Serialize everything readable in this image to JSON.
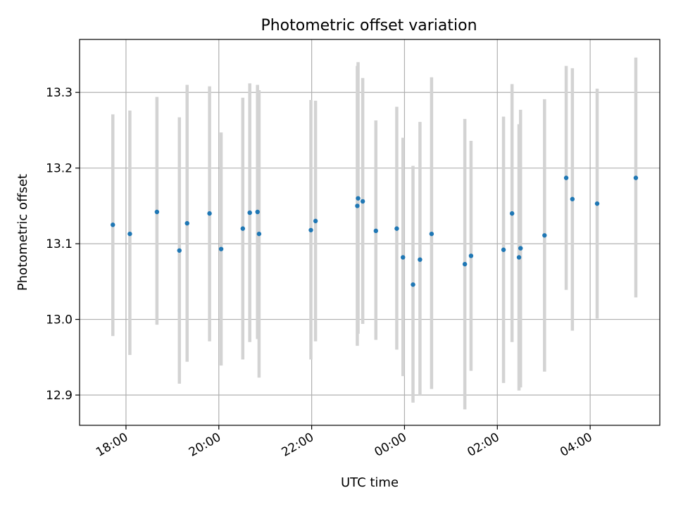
{
  "chart_data": {
    "type": "scatter",
    "title": "Photometric offset variation",
    "xlabel": "UTC time",
    "ylabel": "Photometric offset",
    "x_unit": "time of day (UTC)",
    "xlim": [
      "17:00",
      "05:30 next day"
    ],
    "ylim": [
      12.86,
      13.37
    ],
    "grid": true,
    "legend": "none",
    "x_ticks": [
      "18:00",
      "20:00",
      "22:00",
      "00:00",
      "02:00",
      "04:00"
    ],
    "y_ticks": [
      "12.9",
      "13.0",
      "13.1",
      "13.2",
      "13.3"
    ],
    "colors": {
      "points": "#1f77b4",
      "errorbars": "#d3d3d3",
      "grid": "#b0b0b0"
    },
    "series": [
      {
        "points": [
          {
            "x": "17:43",
            "y": 13.125,
            "ylo": 12.978,
            "yhi": 13.271
          },
          {
            "x": "18:05",
            "y": 13.113,
            "ylo": 12.953,
            "yhi": 13.276
          },
          {
            "x": "18:40",
            "y": 13.142,
            "ylo": 12.993,
            "yhi": 13.294
          },
          {
            "x": "19:09",
            "y": 13.091,
            "ylo": 12.915,
            "yhi": 13.267
          },
          {
            "x": "19:19",
            "y": 13.127,
            "ylo": 12.944,
            "yhi": 13.31
          },
          {
            "x": "19:48",
            "y": 13.14,
            "ylo": 12.971,
            "yhi": 13.308
          },
          {
            "x": "20:03",
            "y": 13.093,
            "ylo": 12.939,
            "yhi": 13.247
          },
          {
            "x": "20:31",
            "y": 13.12,
            "ylo": 12.947,
            "yhi": 13.293
          },
          {
            "x": "20:40",
            "y": 13.141,
            "ylo": 12.97,
            "yhi": 13.312
          },
          {
            "x": "20:50",
            "y": 13.142,
            "ylo": 12.974,
            "yhi": 13.31
          },
          {
            "x": "20:52",
            "y": 13.113,
            "ylo": 12.923,
            "yhi": 13.303
          },
          {
            "x": "21:59",
            "y": 13.118,
            "ylo": 12.947,
            "yhi": 13.29
          },
          {
            "x": "22:05",
            "y": 13.13,
            "ylo": 12.971,
            "yhi": 13.289
          },
          {
            "x": "22:59",
            "y": 13.15,
            "ylo": 12.965,
            "yhi": 13.335
          },
          {
            "x": "23:00",
            "y": 13.16,
            "ylo": 12.981,
            "yhi": 13.34
          },
          {
            "x": "23:06",
            "y": 13.156,
            "ylo": 12.994,
            "yhi": 13.319
          },
          {
            "x": "23:23",
            "y": 13.117,
            "ylo": 12.973,
            "yhi": 13.263
          },
          {
            "x": "23:50",
            "y": 13.12,
            "ylo": 12.96,
            "yhi": 13.281
          },
          {
            "x": "23:58",
            "y": 13.082,
            "ylo": 12.925,
            "yhi": 13.24
          },
          {
            "x": "00:11",
            "y": 13.046,
            "ylo": 12.89,
            "yhi": 13.203
          },
          {
            "x": "00:20",
            "y": 13.079,
            "ylo": 12.899,
            "yhi": 13.261
          },
          {
            "x": "00:35",
            "y": 13.113,
            "ylo": 12.908,
            "yhi": 13.32
          },
          {
            "x": "01:18",
            "y": 13.073,
            "ylo": 12.881,
            "yhi": 13.265
          },
          {
            "x": "01:26",
            "y": 13.084,
            "ylo": 12.932,
            "yhi": 13.236
          },
          {
            "x": "02:08",
            "y": 13.092,
            "ylo": 12.916,
            "yhi": 13.268
          },
          {
            "x": "02:19",
            "y": 13.14,
            "ylo": 12.97,
            "yhi": 13.311
          },
          {
            "x": "02:28",
            "y": 13.082,
            "ylo": 12.906,
            "yhi": 13.258
          },
          {
            "x": "02:30",
            "y": 13.094,
            "ylo": 12.91,
            "yhi": 13.277
          },
          {
            "x": "03:01",
            "y": 13.111,
            "ylo": 12.931,
            "yhi": 13.291
          },
          {
            "x": "03:29",
            "y": 13.187,
            "ylo": 13.039,
            "yhi": 13.335
          },
          {
            "x": "03:37",
            "y": 13.159,
            "ylo": 12.985,
            "yhi": 13.332
          },
          {
            "x": "04:09",
            "y": 13.153,
            "ylo": 13.001,
            "yhi": 13.305
          },
          {
            "x": "04:59",
            "y": 13.187,
            "ylo": 13.029,
            "yhi": 13.346
          }
        ]
      }
    ]
  }
}
